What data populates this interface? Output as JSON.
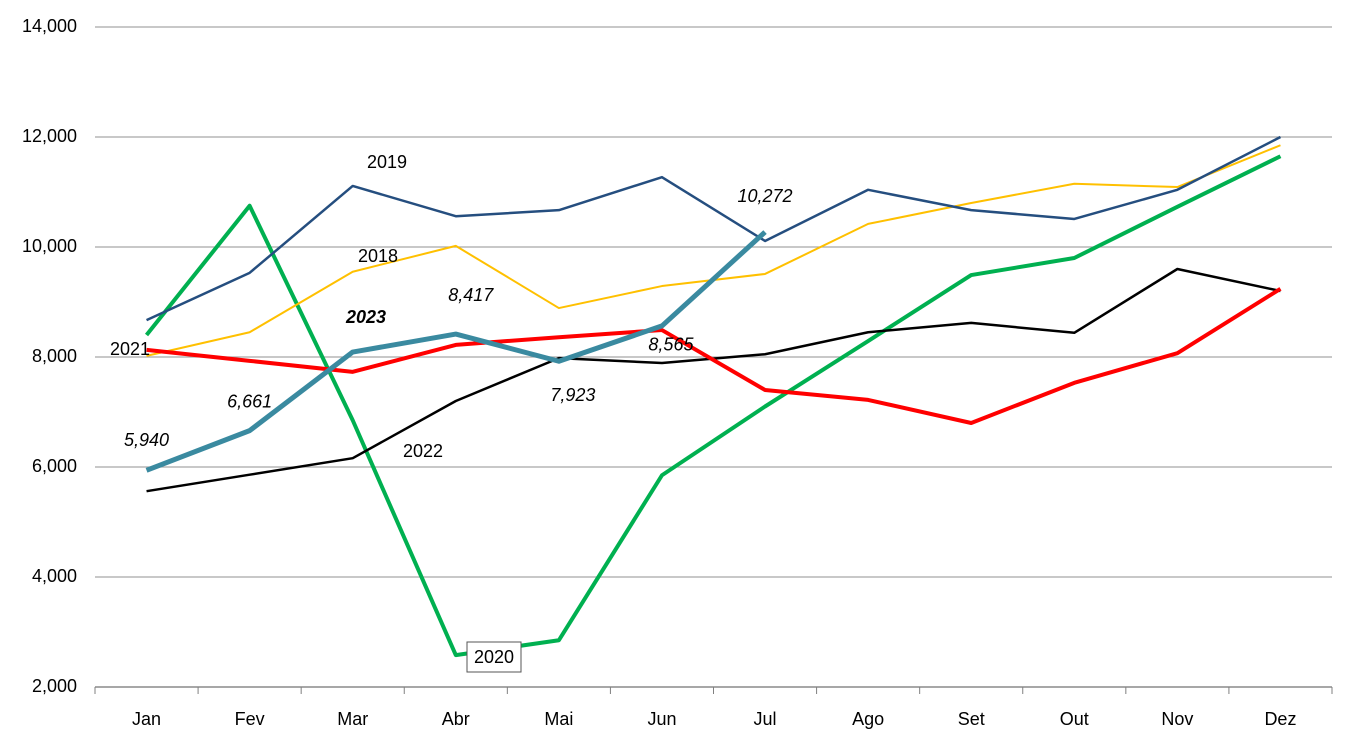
{
  "chart_data": {
    "type": "line",
    "categories": [
      "Jan",
      "Fev",
      "Mar",
      "Abr",
      "Mai",
      "Jun",
      "Jul",
      "Ago",
      "Set",
      "Out",
      "Nov",
      "Dez"
    ],
    "ylim": [
      2000,
      14000
    ],
    "yticks": [
      {
        "value": 2000,
        "label": "2,000"
      },
      {
        "value": 4000,
        "label": "4,000"
      },
      {
        "value": 6000,
        "label": "6,000"
      },
      {
        "value": 8000,
        "label": "8,000"
      },
      {
        "value": 10000,
        "label": "10,000"
      },
      {
        "value": 12000,
        "label": "12,000"
      },
      {
        "value": 14000,
        "label": "14,000"
      }
    ],
    "grid": true,
    "series": [
      {
        "name": "2019",
        "color": "#254e7f",
        "values": [
          8670,
          9530,
          11110,
          10560,
          10670,
          11270,
          10110,
          11040,
          10670,
          10510,
          11040,
          12000
        ]
      },
      {
        "name": "2018",
        "color": "#ffc000",
        "values": [
          8020,
          8450,
          9550,
          10020,
          8890,
          9290,
          9510,
          10420,
          10800,
          11150,
          11090,
          11850
        ]
      },
      {
        "name": "2022",
        "color": "#000000",
        "values": [
          5560,
          5860,
          6160,
          7200,
          7980,
          7890,
          8050,
          8450,
          8620,
          8440,
          9600,
          9200
        ]
      },
      {
        "name": "2020",
        "color": "#00b050",
        "values": [
          8400,
          10750,
          6850,
          2580,
          2850,
          5850,
          7100,
          8290,
          9490,
          9800,
          10730,
          11650
        ]
      },
      {
        "name": "2021",
        "color": "#ff0000",
        "values": [
          8130,
          7930,
          7730,
          8220,
          8360,
          8490,
          7400,
          7220,
          6800,
          7530,
          8070,
          9240
        ]
      },
      {
        "name": "2023",
        "color": "#3a8aa0",
        "values": [
          5940,
          6661,
          8090,
          8417,
          7923,
          8565,
          10272,
          null,
          null,
          null,
          null,
          null
        ],
        "value_labels": [
          "5,940",
          "6,661",
          null,
          "8,417",
          "7,923",
          "8,565",
          "10,272",
          null,
          null,
          null,
          null,
          null
        ]
      }
    ]
  }
}
